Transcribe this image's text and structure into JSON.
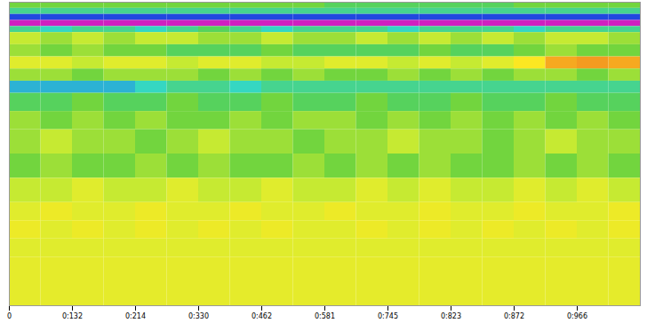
{
  "chart_data": {
    "type": "heatmap",
    "tick_labels": "x",
    "xlim": [
      0,
      1000
    ],
    "xticks": [
      {
        "value": 0,
        "label": "0"
      },
      {
        "value": 100,
        "label": "0:132"
      },
      {
        "value": 200,
        "label": "0:214"
      },
      {
        "value": 300,
        "label": "0:330"
      },
      {
        "value": 400,
        "label": "0:462"
      },
      {
        "value": 500,
        "label": "0:581"
      },
      {
        "value": 600,
        "label": "0:745"
      },
      {
        "value": 700,
        "label": "0:823"
      },
      {
        "value": 800,
        "label": "0:872"
      },
      {
        "value": 900,
        "label": "0:966"
      }
    ],
    "ylim": [
      0,
      100
    ],
    "x_edges": [
      0,
      50,
      100,
      150,
      200,
      250,
      300,
      350,
      400,
      450,
      500,
      550,
      600,
      650,
      700,
      750,
      800,
      850,
      900,
      950,
      1000
    ],
    "y_edges": [
      0,
      2,
      4,
      6,
      8,
      10,
      14,
      18,
      22,
      26,
      30,
      36,
      42,
      50,
      58,
      66,
      72,
      78,
      84,
      100
    ],
    "zlim": [
      0,
      10
    ],
    "cells": [
      [
        5.5,
        5.5,
        5.5,
        5.5,
        5.5,
        5.5,
        5.5,
        5.5,
        5.5,
        5.5,
        6,
        6,
        6,
        6,
        6,
        6,
        5.5,
        5.5,
        5.5,
        5.5
      ],
      [
        6.5,
        6.5,
        6.5,
        6.5,
        6.5,
        6.5,
        6.5,
        6.5,
        6.5,
        6.5,
        6.5,
        6.5,
        6.5,
        6.5,
        6.5,
        6.5,
        6.5,
        6.5,
        6.5,
        6.5
      ],
      [
        8.5,
        8.5,
        8.5,
        8.5,
        8.5,
        8.5,
        8.5,
        8.5,
        8.5,
        8.5,
        8.5,
        8.5,
        8.5,
        8.5,
        8.5,
        8.5,
        8.5,
        8.5,
        8.5,
        8.5
      ],
      [
        10,
        10,
        10,
        10,
        10,
        10,
        10,
        10,
        10,
        10,
        10,
        10,
        10,
        10,
        10,
        10,
        10,
        10,
        10,
        10
      ],
      [
        6.5,
        7,
        6.5,
        6.5,
        7,
        6.5,
        6,
        6.5,
        7,
        6.5,
        6.5,
        6.5,
        7,
        6.5,
        6.5,
        6.5,
        7,
        6.5,
        6.5,
        6.5
      ],
      [
        4.5,
        5,
        4.5,
        5,
        4.5,
        4.5,
        5,
        5,
        4.5,
        5,
        5,
        4.5,
        5,
        4.5,
        5,
        4.5,
        5,
        4.5,
        4.5,
        5
      ],
      [
        5,
        5.5,
        5,
        5.5,
        5.5,
        6,
        6,
        6,
        5.5,
        6,
        6,
        6,
        6,
        5.5,
        6,
        6,
        5.5,
        5,
        5.5,
        5.5
      ],
      [
        4,
        4,
        4.5,
        4,
        4,
        4.5,
        4,
        4,
        4.5,
        4.5,
        4,
        4,
        4.5,
        4,
        4.5,
        4,
        3,
        2,
        1.8,
        2
      ],
      [
        5,
        5,
        5.5,
        5,
        5,
        5,
        5.5,
        5,
        5.5,
        5,
        5.5,
        5.5,
        5,
        5.5,
        5,
        5.5,
        5,
        5,
        5.5,
        5
      ],
      [
        7.5,
        7.5,
        7.5,
        7.5,
        7,
        6.5,
        6.5,
        7,
        6.5,
        6.5,
        6.5,
        6.5,
        6.5,
        6.5,
        6.5,
        6.5,
        6.5,
        6.5,
        6.5,
        6.5
      ],
      [
        6,
        6,
        5.5,
        6,
        6,
        5.5,
        6,
        6,
        5.5,
        6,
        6,
        5.5,
        6,
        6,
        5.5,
        6,
        6,
        5.5,
        6,
        6
      ],
      [
        5,
        5.5,
        5,
        5.5,
        5,
        5.5,
        5.5,
        5,
        5.5,
        5,
        5,
        5.5,
        5,
        5.5,
        5,
        5.5,
        5,
        5.5,
        5,
        5.5
      ],
      [
        5,
        4.5,
        5,
        5,
        5.5,
        5,
        4.5,
        5,
        5,
        5.5,
        5,
        5,
        4.5,
        5,
        5,
        5.5,
        5,
        4.5,
        5,
        5
      ],
      [
        5.5,
        5,
        5.5,
        5.5,
        5,
        5.5,
        5,
        5.5,
        5.5,
        5,
        5.5,
        5,
        5.5,
        5,
        5.5,
        5.5,
        5,
        5.5,
        5,
        5.5
      ],
      [
        4.5,
        4.5,
        4,
        4.5,
        4.5,
        4,
        4.5,
        4.5,
        4,
        4.5,
        4.5,
        4,
        4.5,
        4,
        4.5,
        4.5,
        4,
        4.5,
        4,
        4.5
      ],
      [
        4,
        3.5,
        4,
        4,
        3.5,
        4,
        4,
        3.5,
        4,
        4,
        3.5,
        4,
        4,
        3.5,
        4,
        4,
        3.5,
        4,
        4,
        3.5
      ],
      [
        3.5,
        4,
        3.5,
        4,
        3.5,
        4,
        3.5,
        4,
        3.5,
        4,
        4,
        3.5,
        4,
        3.5,
        4,
        3.5,
        4,
        3.5,
        4,
        3.5
      ],
      [
        4,
        4,
        4,
        4,
        4,
        4,
        4,
        4,
        4,
        4,
        4,
        4,
        4,
        4,
        4,
        4,
        4,
        4,
        4,
        4
      ],
      [
        3.8,
        3.8,
        3.8,
        3.8,
        3.8,
        3.8,
        3.8,
        3.8,
        3.8,
        3.8,
        3.8,
        3.8,
        3.8,
        3.8,
        3.8,
        3.8,
        3.8,
        3.8,
        3.8,
        3.8
      ]
    ]
  }
}
